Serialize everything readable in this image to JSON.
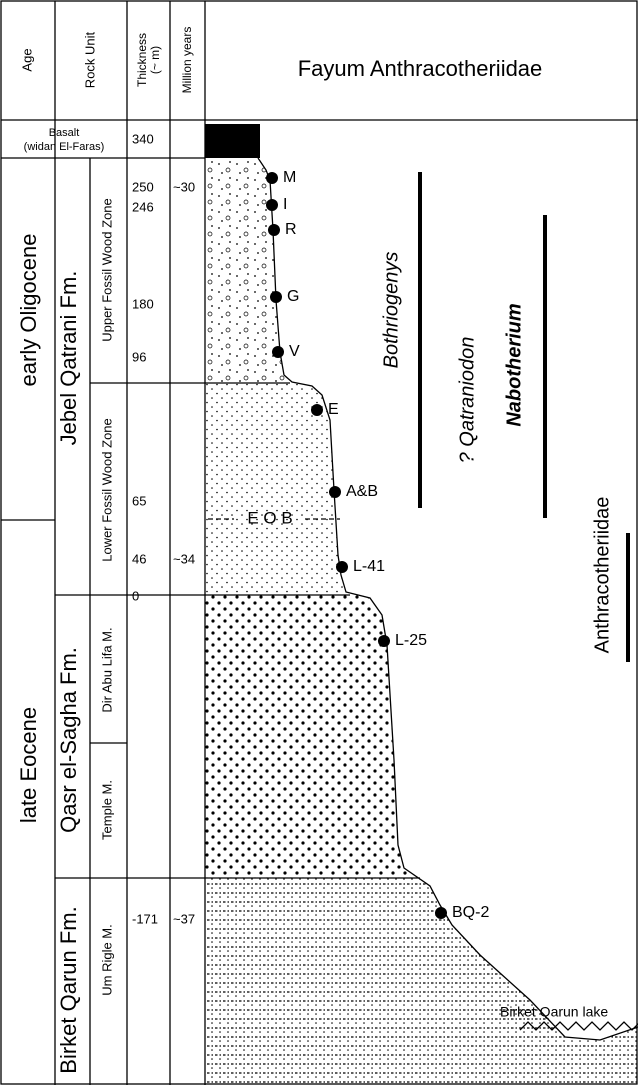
{
  "header": {
    "age": "Age",
    "rock_unit": "Rock Unit",
    "thickness": "Thickness",
    "thickness_unit": "(~ m)",
    "million_years": "Million years",
    "title": "Fayum Anthracotheriidae"
  },
  "basalt": {
    "name": "Basalt",
    "sub": "(widan El-Faras)"
  },
  "ages": [
    "early Oligocene",
    "late Eocene"
  ],
  "formations": [
    "Jebel Qatrani Fm.",
    "Qasr el-Sagha Fm.",
    "Birket Qarun Fm."
  ],
  "members": [
    "Upper Fossil Wood Zone",
    "Lower Fossil Wood Zone",
    "Dir Abu Lifa M.",
    "Temple M.",
    "Um Rigle M."
  ],
  "thickness": [
    "340",
    "250",
    "246",
    "180",
    "96",
    "65",
    "46",
    "0",
    "-171"
  ],
  "million_years": [
    "~30",
    "~34",
    "~37"
  ],
  "localities": [
    "M",
    "I",
    "R",
    "G",
    "V",
    "E",
    "A&B",
    "L-41",
    "L-25",
    "BQ-2"
  ],
  "eob": "E O B",
  "lake": "Birket Qarun lake",
  "taxa": [
    "Bothriogenys",
    "? Qatraniodon",
    "Nabotherium",
    "Anthracotheriidae"
  ]
}
